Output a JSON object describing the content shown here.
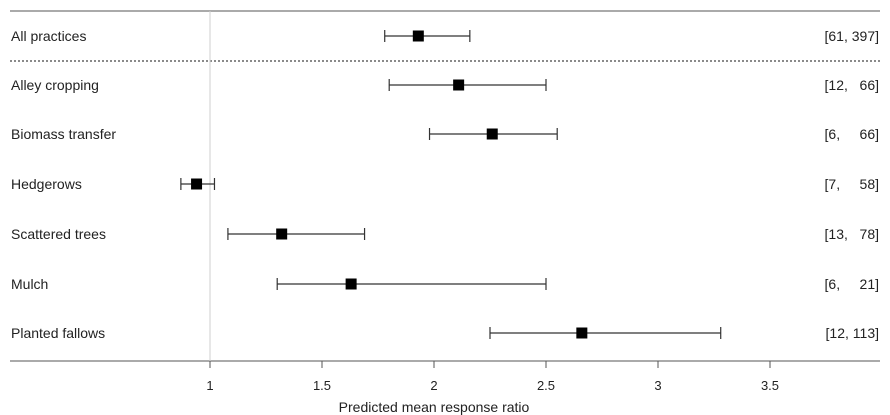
{
  "chart_data": {
    "type": "forest",
    "xlabel": "Predicted mean response ratio",
    "xlim": [
      0.55,
      3.65
    ],
    "reference_line": 1,
    "grid": false,
    "x_ticks": [
      "1",
      "1.5",
      "2",
      "2.5",
      "3",
      "3.5"
    ],
    "x_tick_values": [
      1,
      1.5,
      2,
      2.5,
      3,
      3.5
    ],
    "rows": [
      {
        "label": "All practices",
        "estimate": 1.93,
        "lower": 1.78,
        "upper": 2.16,
        "n_text": "[61, 397]"
      },
      {
        "label": "Alley cropping",
        "estimate": 2.11,
        "lower": 1.8,
        "upper": 2.5,
        "n_text": "[12,   66]"
      },
      {
        "label": "Biomass transfer",
        "estimate": 2.26,
        "lower": 1.98,
        "upper": 2.55,
        "n_text": "[6,     66]"
      },
      {
        "label": "Hedgerows",
        "estimate": 0.94,
        "lower": 0.87,
        "upper": 1.02,
        "n_text": "[7,     58]"
      },
      {
        "label": "Scattered trees",
        "estimate": 1.32,
        "lower": 1.08,
        "upper": 1.69,
        "n_text": "[13,   78]"
      },
      {
        "label": "Mulch",
        "estimate": 1.63,
        "lower": 1.3,
        "upper": 2.5,
        "n_text": "[6,     21]"
      },
      {
        "label": "Planted fallows",
        "estimate": 2.66,
        "lower": 2.25,
        "upper": 3.28,
        "n_text": "[12, 113]"
      }
    ]
  }
}
